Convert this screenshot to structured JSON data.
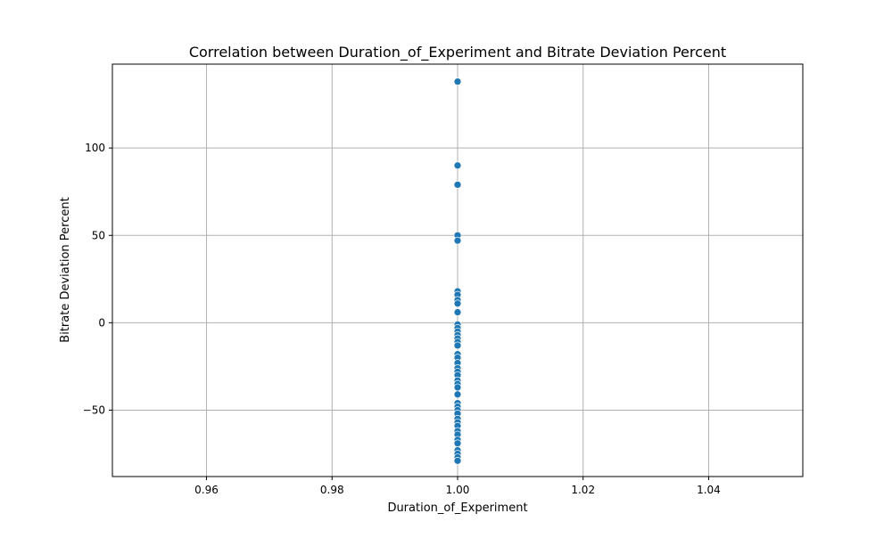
{
  "chart_data": {
    "type": "scatter",
    "title": "Correlation between Duration_of_Experiment and Bitrate Deviation Percent",
    "xlabel": "Duration_of_Experiment",
    "ylabel": "Bitrate Deviation Percent",
    "xlim": [
      0.945,
      1.055
    ],
    "ylim": [
      -88,
      148
    ],
    "xticks": [
      0.96,
      0.98,
      1.0,
      1.02,
      1.04
    ],
    "xtick_labels": [
      "0.96",
      "0.98",
      "1.00",
      "1.02",
      "1.04"
    ],
    "yticks": [
      -50,
      0,
      50,
      100
    ],
    "ytick_labels": [
      "−50",
      "0",
      "50",
      "100"
    ],
    "grid": true,
    "point_color": "#1f77b4",
    "points": [
      {
        "x": 1.0,
        "y": 138
      },
      {
        "x": 1.0,
        "y": 90
      },
      {
        "x": 1.0,
        "y": 79
      },
      {
        "x": 1.0,
        "y": 50
      },
      {
        "x": 1.0,
        "y": 47
      },
      {
        "x": 1.0,
        "y": 18
      },
      {
        "x": 1.0,
        "y": 16
      },
      {
        "x": 1.0,
        "y": 13
      },
      {
        "x": 1.0,
        "y": 11
      },
      {
        "x": 1.0,
        "y": 6
      },
      {
        "x": 1.0,
        "y": -1
      },
      {
        "x": 1.0,
        "y": -3
      },
      {
        "x": 1.0,
        "y": -5
      },
      {
        "x": 1.0,
        "y": -7
      },
      {
        "x": 1.0,
        "y": -9
      },
      {
        "x": 1.0,
        "y": -11
      },
      {
        "x": 1.0,
        "y": -13
      },
      {
        "x": 1.0,
        "y": -18
      },
      {
        "x": 1.0,
        "y": -20
      },
      {
        "x": 1.0,
        "y": -23
      },
      {
        "x": 1.0,
        "y": -26
      },
      {
        "x": 1.0,
        "y": -28
      },
      {
        "x": 1.0,
        "y": -30
      },
      {
        "x": 1.0,
        "y": -33
      },
      {
        "x": 1.0,
        "y": -35
      },
      {
        "x": 1.0,
        "y": -37
      },
      {
        "x": 1.0,
        "y": -41
      },
      {
        "x": 1.0,
        "y": -46
      },
      {
        "x": 1.0,
        "y": -48
      },
      {
        "x": 1.0,
        "y": -50
      },
      {
        "x": 1.0,
        "y": -52
      },
      {
        "x": 1.0,
        "y": -55
      },
      {
        "x": 1.0,
        "y": -57
      },
      {
        "x": 1.0,
        "y": -59
      },
      {
        "x": 1.0,
        "y": -62
      },
      {
        "x": 1.0,
        "y": -64
      },
      {
        "x": 1.0,
        "y": -67
      },
      {
        "x": 1.0,
        "y": -69
      },
      {
        "x": 1.0,
        "y": -73
      },
      {
        "x": 1.0,
        "y": -75
      },
      {
        "x": 1.0,
        "y": -77
      },
      {
        "x": 1.0,
        "y": -79
      }
    ]
  }
}
